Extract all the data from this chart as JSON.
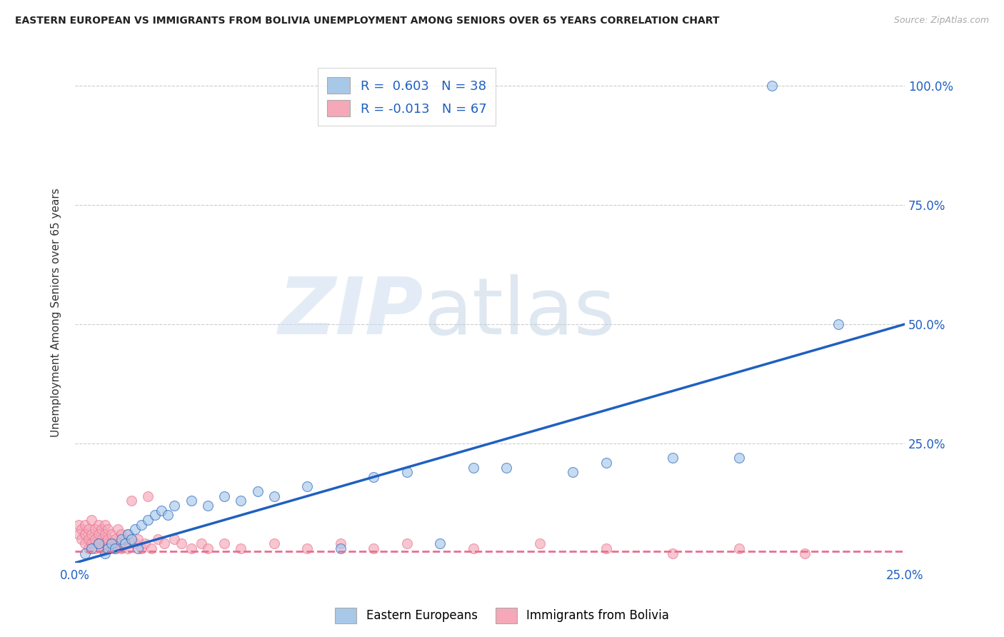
{
  "title": "EASTERN EUROPEAN VS IMMIGRANTS FROM BOLIVIA UNEMPLOYMENT AMONG SENIORS OVER 65 YEARS CORRELATION CHART",
  "source": "Source: ZipAtlas.com",
  "ylabel": "Unemployment Among Seniors over 65 years",
  "xlim": [
    0.0,
    0.25
  ],
  "ylim": [
    0.0,
    1.05
  ],
  "xtick_labels": [
    "0.0%",
    "25.0%"
  ],
  "xtick_positions": [
    0.0,
    0.25
  ],
  "ytick_labels": [
    "100.0%",
    "75.0%",
    "50.0%",
    "25.0%"
  ],
  "ytick_positions": [
    1.0,
    0.75,
    0.5,
    0.25
  ],
  "r_eastern": 0.603,
  "n_eastern": 38,
  "r_bolivia": -0.013,
  "n_bolivia": 67,
  "color_eastern": "#a8c8e8",
  "color_bolivia": "#f4a8b8",
  "color_eastern_line": "#2060c0",
  "color_bolivia_line": "#e87090",
  "eastern_line_x": [
    0.0,
    0.25
  ],
  "eastern_line_y": [
    0.0,
    0.5
  ],
  "bolivia_line_x": [
    0.0,
    0.25
  ],
  "bolivia_line_y": [
    0.025,
    0.025
  ],
  "eastern_x": [
    0.003,
    0.005,
    0.007,
    0.009,
    0.01,
    0.011,
    0.012,
    0.014,
    0.015,
    0.016,
    0.017,
    0.018,
    0.019,
    0.02,
    0.022,
    0.024,
    0.026,
    0.028,
    0.03,
    0.035,
    0.04,
    0.045,
    0.05,
    0.055,
    0.06,
    0.07,
    0.08,
    0.09,
    0.1,
    0.11,
    0.12,
    0.13,
    0.15,
    0.16,
    0.18,
    0.2,
    0.21,
    0.23
  ],
  "eastern_y": [
    0.02,
    0.03,
    0.04,
    0.02,
    0.03,
    0.04,
    0.03,
    0.05,
    0.04,
    0.06,
    0.05,
    0.07,
    0.03,
    0.08,
    0.09,
    0.1,
    0.11,
    0.1,
    0.12,
    0.13,
    0.12,
    0.14,
    0.13,
    0.15,
    0.14,
    0.16,
    0.03,
    0.18,
    0.19,
    0.04,
    0.2,
    0.2,
    0.19,
    0.21,
    0.22,
    0.22,
    1.0,
    0.5
  ],
  "bolivia_x": [
    0.001,
    0.001,
    0.002,
    0.002,
    0.003,
    0.003,
    0.003,
    0.004,
    0.004,
    0.004,
    0.005,
    0.005,
    0.005,
    0.006,
    0.006,
    0.006,
    0.007,
    0.007,
    0.007,
    0.008,
    0.008,
    0.008,
    0.009,
    0.009,
    0.009,
    0.01,
    0.01,
    0.01,
    0.011,
    0.011,
    0.012,
    0.012,
    0.013,
    0.013,
    0.014,
    0.014,
    0.015,
    0.015,
    0.016,
    0.016,
    0.017,
    0.018,
    0.019,
    0.02,
    0.021,
    0.022,
    0.023,
    0.025,
    0.027,
    0.03,
    0.032,
    0.035,
    0.038,
    0.04,
    0.045,
    0.05,
    0.06,
    0.07,
    0.08,
    0.09,
    0.1,
    0.12,
    0.14,
    0.16,
    0.18,
    0.2,
    0.22
  ],
  "bolivia_y": [
    0.06,
    0.08,
    0.05,
    0.07,
    0.04,
    0.06,
    0.08,
    0.03,
    0.05,
    0.07,
    0.04,
    0.06,
    0.09,
    0.03,
    0.05,
    0.07,
    0.04,
    0.06,
    0.08,
    0.03,
    0.05,
    0.07,
    0.04,
    0.06,
    0.08,
    0.03,
    0.05,
    0.07,
    0.04,
    0.06,
    0.03,
    0.05,
    0.04,
    0.07,
    0.03,
    0.06,
    0.04,
    0.05,
    0.03,
    0.06,
    0.13,
    0.04,
    0.05,
    0.03,
    0.04,
    0.14,
    0.03,
    0.05,
    0.04,
    0.05,
    0.04,
    0.03,
    0.04,
    0.03,
    0.04,
    0.03,
    0.04,
    0.03,
    0.04,
    0.03,
    0.04,
    0.03,
    0.04,
    0.03,
    0.02,
    0.03,
    0.02
  ]
}
